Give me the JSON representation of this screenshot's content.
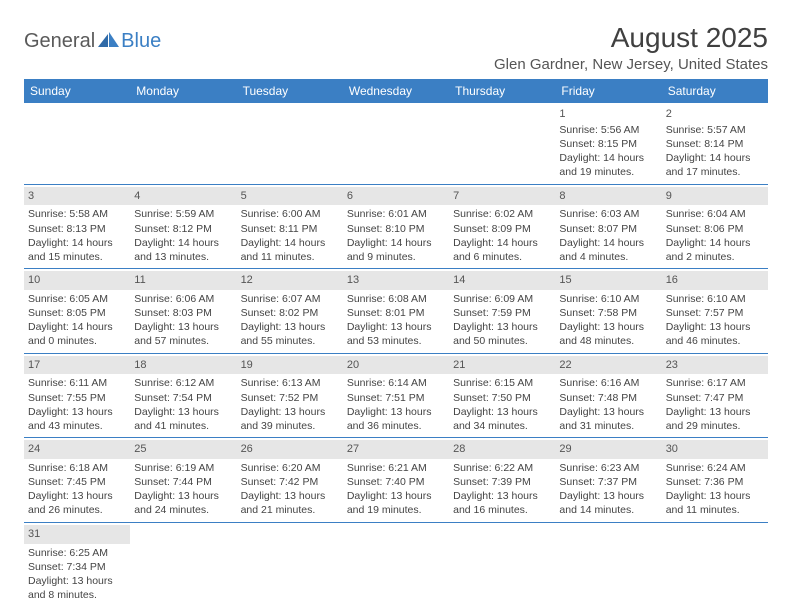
{
  "logo": {
    "text1": "General",
    "text2": "Blue"
  },
  "title": {
    "month_year": "August 2025",
    "location": "Glen Gardner, New Jersey, United States"
  },
  "colors": {
    "header_bg": "#3b7fc4",
    "daynum_bg": "#e6e6e6",
    "text": "#444444"
  },
  "weekdays": [
    "Sunday",
    "Monday",
    "Tuesday",
    "Wednesday",
    "Thursday",
    "Friday",
    "Saturday"
  ],
  "weeks": [
    [
      null,
      null,
      null,
      null,
      null,
      {
        "n": "1",
        "sr": "Sunrise: 5:56 AM",
        "ss": "Sunset: 8:15 PM",
        "dl1": "Daylight: 14 hours",
        "dl2": "and 19 minutes."
      },
      {
        "n": "2",
        "sr": "Sunrise: 5:57 AM",
        "ss": "Sunset: 8:14 PM",
        "dl1": "Daylight: 14 hours",
        "dl2": "and 17 minutes."
      }
    ],
    [
      {
        "n": "3",
        "sr": "Sunrise: 5:58 AM",
        "ss": "Sunset: 8:13 PM",
        "dl1": "Daylight: 14 hours",
        "dl2": "and 15 minutes."
      },
      {
        "n": "4",
        "sr": "Sunrise: 5:59 AM",
        "ss": "Sunset: 8:12 PM",
        "dl1": "Daylight: 14 hours",
        "dl2": "and 13 minutes."
      },
      {
        "n": "5",
        "sr": "Sunrise: 6:00 AM",
        "ss": "Sunset: 8:11 PM",
        "dl1": "Daylight: 14 hours",
        "dl2": "and 11 minutes."
      },
      {
        "n": "6",
        "sr": "Sunrise: 6:01 AM",
        "ss": "Sunset: 8:10 PM",
        "dl1": "Daylight: 14 hours",
        "dl2": "and 9 minutes."
      },
      {
        "n": "7",
        "sr": "Sunrise: 6:02 AM",
        "ss": "Sunset: 8:09 PM",
        "dl1": "Daylight: 14 hours",
        "dl2": "and 6 minutes."
      },
      {
        "n": "8",
        "sr": "Sunrise: 6:03 AM",
        "ss": "Sunset: 8:07 PM",
        "dl1": "Daylight: 14 hours",
        "dl2": "and 4 minutes."
      },
      {
        "n": "9",
        "sr": "Sunrise: 6:04 AM",
        "ss": "Sunset: 8:06 PM",
        "dl1": "Daylight: 14 hours",
        "dl2": "and 2 minutes."
      }
    ],
    [
      {
        "n": "10",
        "sr": "Sunrise: 6:05 AM",
        "ss": "Sunset: 8:05 PM",
        "dl1": "Daylight: 14 hours",
        "dl2": "and 0 minutes."
      },
      {
        "n": "11",
        "sr": "Sunrise: 6:06 AM",
        "ss": "Sunset: 8:03 PM",
        "dl1": "Daylight: 13 hours",
        "dl2": "and 57 minutes."
      },
      {
        "n": "12",
        "sr": "Sunrise: 6:07 AM",
        "ss": "Sunset: 8:02 PM",
        "dl1": "Daylight: 13 hours",
        "dl2": "and 55 minutes."
      },
      {
        "n": "13",
        "sr": "Sunrise: 6:08 AM",
        "ss": "Sunset: 8:01 PM",
        "dl1": "Daylight: 13 hours",
        "dl2": "and 53 minutes."
      },
      {
        "n": "14",
        "sr": "Sunrise: 6:09 AM",
        "ss": "Sunset: 7:59 PM",
        "dl1": "Daylight: 13 hours",
        "dl2": "and 50 minutes."
      },
      {
        "n": "15",
        "sr": "Sunrise: 6:10 AM",
        "ss": "Sunset: 7:58 PM",
        "dl1": "Daylight: 13 hours",
        "dl2": "and 48 minutes."
      },
      {
        "n": "16",
        "sr": "Sunrise: 6:10 AM",
        "ss": "Sunset: 7:57 PM",
        "dl1": "Daylight: 13 hours",
        "dl2": "and 46 minutes."
      }
    ],
    [
      {
        "n": "17",
        "sr": "Sunrise: 6:11 AM",
        "ss": "Sunset: 7:55 PM",
        "dl1": "Daylight: 13 hours",
        "dl2": "and 43 minutes."
      },
      {
        "n": "18",
        "sr": "Sunrise: 6:12 AM",
        "ss": "Sunset: 7:54 PM",
        "dl1": "Daylight: 13 hours",
        "dl2": "and 41 minutes."
      },
      {
        "n": "19",
        "sr": "Sunrise: 6:13 AM",
        "ss": "Sunset: 7:52 PM",
        "dl1": "Daylight: 13 hours",
        "dl2": "and 39 minutes."
      },
      {
        "n": "20",
        "sr": "Sunrise: 6:14 AM",
        "ss": "Sunset: 7:51 PM",
        "dl1": "Daylight: 13 hours",
        "dl2": "and 36 minutes."
      },
      {
        "n": "21",
        "sr": "Sunrise: 6:15 AM",
        "ss": "Sunset: 7:50 PM",
        "dl1": "Daylight: 13 hours",
        "dl2": "and 34 minutes."
      },
      {
        "n": "22",
        "sr": "Sunrise: 6:16 AM",
        "ss": "Sunset: 7:48 PM",
        "dl1": "Daylight: 13 hours",
        "dl2": "and 31 minutes."
      },
      {
        "n": "23",
        "sr": "Sunrise: 6:17 AM",
        "ss": "Sunset: 7:47 PM",
        "dl1": "Daylight: 13 hours",
        "dl2": "and 29 minutes."
      }
    ],
    [
      {
        "n": "24",
        "sr": "Sunrise: 6:18 AM",
        "ss": "Sunset: 7:45 PM",
        "dl1": "Daylight: 13 hours",
        "dl2": "and 26 minutes."
      },
      {
        "n": "25",
        "sr": "Sunrise: 6:19 AM",
        "ss": "Sunset: 7:44 PM",
        "dl1": "Daylight: 13 hours",
        "dl2": "and 24 minutes."
      },
      {
        "n": "26",
        "sr": "Sunrise: 6:20 AM",
        "ss": "Sunset: 7:42 PM",
        "dl1": "Daylight: 13 hours",
        "dl2": "and 21 minutes."
      },
      {
        "n": "27",
        "sr": "Sunrise: 6:21 AM",
        "ss": "Sunset: 7:40 PM",
        "dl1": "Daylight: 13 hours",
        "dl2": "and 19 minutes."
      },
      {
        "n": "28",
        "sr": "Sunrise: 6:22 AM",
        "ss": "Sunset: 7:39 PM",
        "dl1": "Daylight: 13 hours",
        "dl2": "and 16 minutes."
      },
      {
        "n": "29",
        "sr": "Sunrise: 6:23 AM",
        "ss": "Sunset: 7:37 PM",
        "dl1": "Daylight: 13 hours",
        "dl2": "and 14 minutes."
      },
      {
        "n": "30",
        "sr": "Sunrise: 6:24 AM",
        "ss": "Sunset: 7:36 PM",
        "dl1": "Daylight: 13 hours",
        "dl2": "and 11 minutes."
      }
    ],
    [
      {
        "n": "31",
        "sr": "Sunrise: 6:25 AM",
        "ss": "Sunset: 7:34 PM",
        "dl1": "Daylight: 13 hours",
        "dl2": "and 8 minutes."
      },
      null,
      null,
      null,
      null,
      null,
      null
    ]
  ]
}
